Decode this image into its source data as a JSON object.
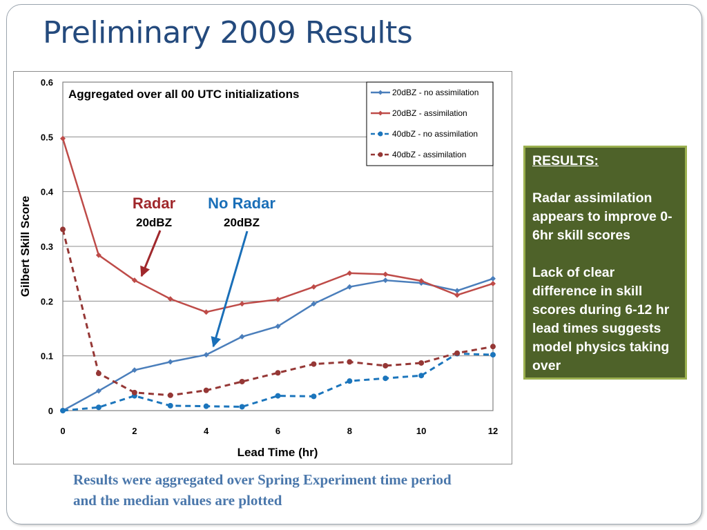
{
  "slide": {
    "title": "Preliminary 2009 Results",
    "caption": "Results were aggregated over Spring Experiment time period and the median values are plotted"
  },
  "results_box": {
    "heading": "RESULTS:",
    "paragraphs": [
      "Radar assimilation appears to improve 0-6hr skill scores",
      "Lack of clear difference in skill scores during 6-12 hr lead times suggests model physics taking over"
    ]
  },
  "annotations": {
    "radar_label": "Radar",
    "radar_sub": "20dBZ",
    "no_radar_label": "No Radar",
    "no_radar_sub": "20dBZ",
    "radar_color": "#a0282c",
    "no_radar_color": "#1a6fb8"
  },
  "chart_data": {
    "type": "line",
    "title": "Aggregated over all 00 UTC initializations",
    "xlabel": "Lead Time (hr)",
    "ylabel": "Gilbert Skill Score",
    "x": [
      0,
      1,
      2,
      3,
      4,
      5,
      6,
      7,
      8,
      9,
      10,
      11,
      12
    ],
    "xlim": [
      0,
      12
    ],
    "ylim": [
      0,
      0.6
    ],
    "x_ticks": [
      "0",
      "2",
      "4",
      "6",
      "8",
      "10",
      "12"
    ],
    "y_ticks": [
      "0",
      "0.1",
      "0.2",
      "0.3",
      "0.4",
      "0.5",
      "0.6"
    ],
    "grid": "horizontal",
    "legend_position": "top-right",
    "series": [
      {
        "name": "20dBZ - no assimilation",
        "color": "#4a7ebb",
        "dash": "solid",
        "marker": "diamond",
        "values": [
          0.0,
          0.036,
          0.074,
          0.089,
          0.102,
          0.135,
          0.154,
          0.195,
          0.226,
          0.238,
          0.233,
          0.219,
          0.241
        ]
      },
      {
        "name": "20dBZ - assimilation",
        "color": "#be4b48",
        "dash": "solid",
        "marker": "diamond",
        "values": [
          0.497,
          0.284,
          0.238,
          0.204,
          0.18,
          0.195,
          0.203,
          0.226,
          0.251,
          0.249,
          0.237,
          0.211,
          0.232
        ]
      },
      {
        "name": "40dbZ - no assimilation",
        "color": "#1b75bc",
        "dash": "dashed",
        "marker": "circle",
        "values": [
          0.0,
          0.006,
          0.027,
          0.009,
          0.008,
          0.007,
          0.027,
          0.026,
          0.054,
          0.059,
          0.064,
          0.104,
          0.102
        ]
      },
      {
        "name": "40dbZ - assimilation",
        "color": "#953735",
        "dash": "dashed",
        "marker": "circle",
        "values": [
          0.331,
          0.068,
          0.033,
          0.028,
          0.037,
          0.053,
          0.069,
          0.085,
          0.089,
          0.082,
          0.087,
          0.105,
          0.117
        ]
      }
    ]
  }
}
